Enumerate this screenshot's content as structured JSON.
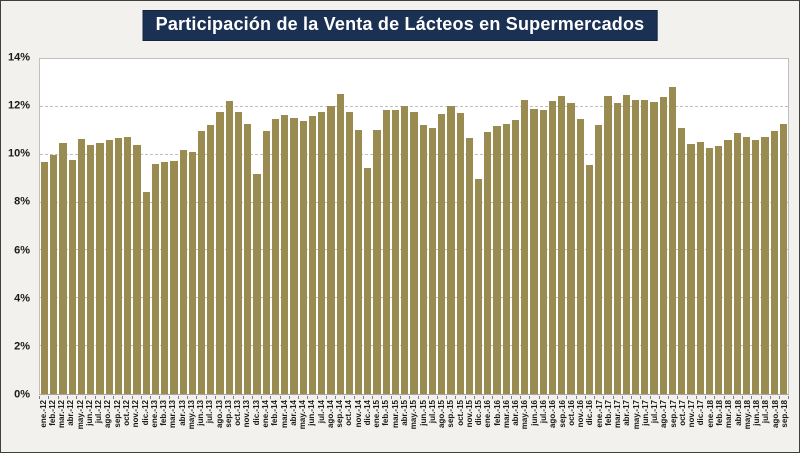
{
  "title": "Participación de la Venta de Lácteos en Supermercados",
  "colors": {
    "background": "#f2f1ee",
    "outer_border": "#3f3f3f",
    "title_bg": "#1b3153",
    "title_text": "#ffffff",
    "bar": "#9a8c50",
    "grid": "#bfbfbf",
    "axis_text": "#1a1a1a",
    "tick": "#808080"
  },
  "chart_data": {
    "type": "bar",
    "title": "Participación de la Venta de Lácteos en Supermercados",
    "xlabel": "",
    "ylabel": "",
    "ylim": [
      0,
      14
    ],
    "ytick_step": 2,
    "ytick_labels": [
      "0%",
      "2%",
      "4%",
      "6%",
      "8%",
      "10%",
      "12%",
      "14%"
    ],
    "grid": "horizontal-dashed",
    "legend": "none",
    "categories": [
      "ene.-12",
      "feb.-12",
      "mar.-12",
      "abr.-12",
      "may.-12",
      "jun.-12",
      "jul.-12",
      "ago.-12",
      "sep.-12",
      "oct.-12",
      "nov.-12",
      "dic.-12",
      "ene.-13",
      "feb.-13",
      "mar.-13",
      "abr.-13",
      "may.-13",
      "jun.-13",
      "jul.-13",
      "ago.-13",
      "sep.-13",
      "oct.-13",
      "nov.-13",
      "dic.-13",
      "ene.-14",
      "feb.-14",
      "mar.-14",
      "abr.-14",
      "may.-14",
      "jun.-14",
      "jul.-14",
      "ago.-14",
      "sep.-14",
      "oct.-14",
      "nov.-14",
      "dic.-14",
      "ene.-15",
      "feb.-15",
      "mar.-15",
      "abr.-15",
      "may.-15",
      "jun.-15",
      "jul.-15",
      "ago.-15",
      "sep.-15",
      "oct.-15",
      "nov.-15",
      "dic.-15",
      "ene.-16",
      "feb.-16",
      "mar.-16",
      "abr.-16",
      "may.-16",
      "jun.-16",
      "jul.-16",
      "ago.-16",
      "sep.-16",
      "oct.-16",
      "nov.-16",
      "dic.-16",
      "ene.-17",
      "feb.-17",
      "mar.-17",
      "abr.-17",
      "may.-17",
      "jun.-17",
      "jul.-17",
      "ago.-17",
      "sep.-17",
      "oct.-17",
      "nov.-17",
      "dic.-17",
      "ene.-18",
      "feb.-18",
      "mar.-18",
      "abr.-18",
      "may.-18",
      "jun.-18",
      "jul.-18",
      "ago.-18",
      "sep.-18"
    ],
    "values": [
      9.7,
      10.0,
      10.5,
      9.8,
      10.65,
      10.4,
      10.5,
      10.6,
      10.7,
      10.75,
      10.4,
      8.45,
      9.6,
      9.7,
      9.75,
      10.2,
      10.1,
      11.0,
      11.25,
      11.8,
      12.25,
      11.8,
      11.3,
      9.2,
      11.0,
      11.5,
      11.65,
      11.55,
      11.4,
      11.6,
      11.8,
      12.05,
      12.55,
      11.8,
      11.05,
      9.45,
      11.05,
      11.85,
      11.85,
      12.05,
      11.8,
      11.25,
      11.1,
      11.7,
      12.05,
      11.75,
      10.7,
      9.0,
      10.95,
      11.2,
      11.3,
      11.45,
      12.3,
      11.9,
      11.85,
      12.25,
      12.45,
      12.15,
      11.5,
      9.55,
      11.25,
      12.45,
      12.15,
      12.5,
      12.3,
      12.3,
      12.2,
      12.4,
      12.85,
      11.1,
      10.45,
      10.55,
      10.3,
      10.35,
      10.6,
      10.9,
      10.75,
      10.6,
      10.75,
      11.0,
      11.3
    ]
  }
}
